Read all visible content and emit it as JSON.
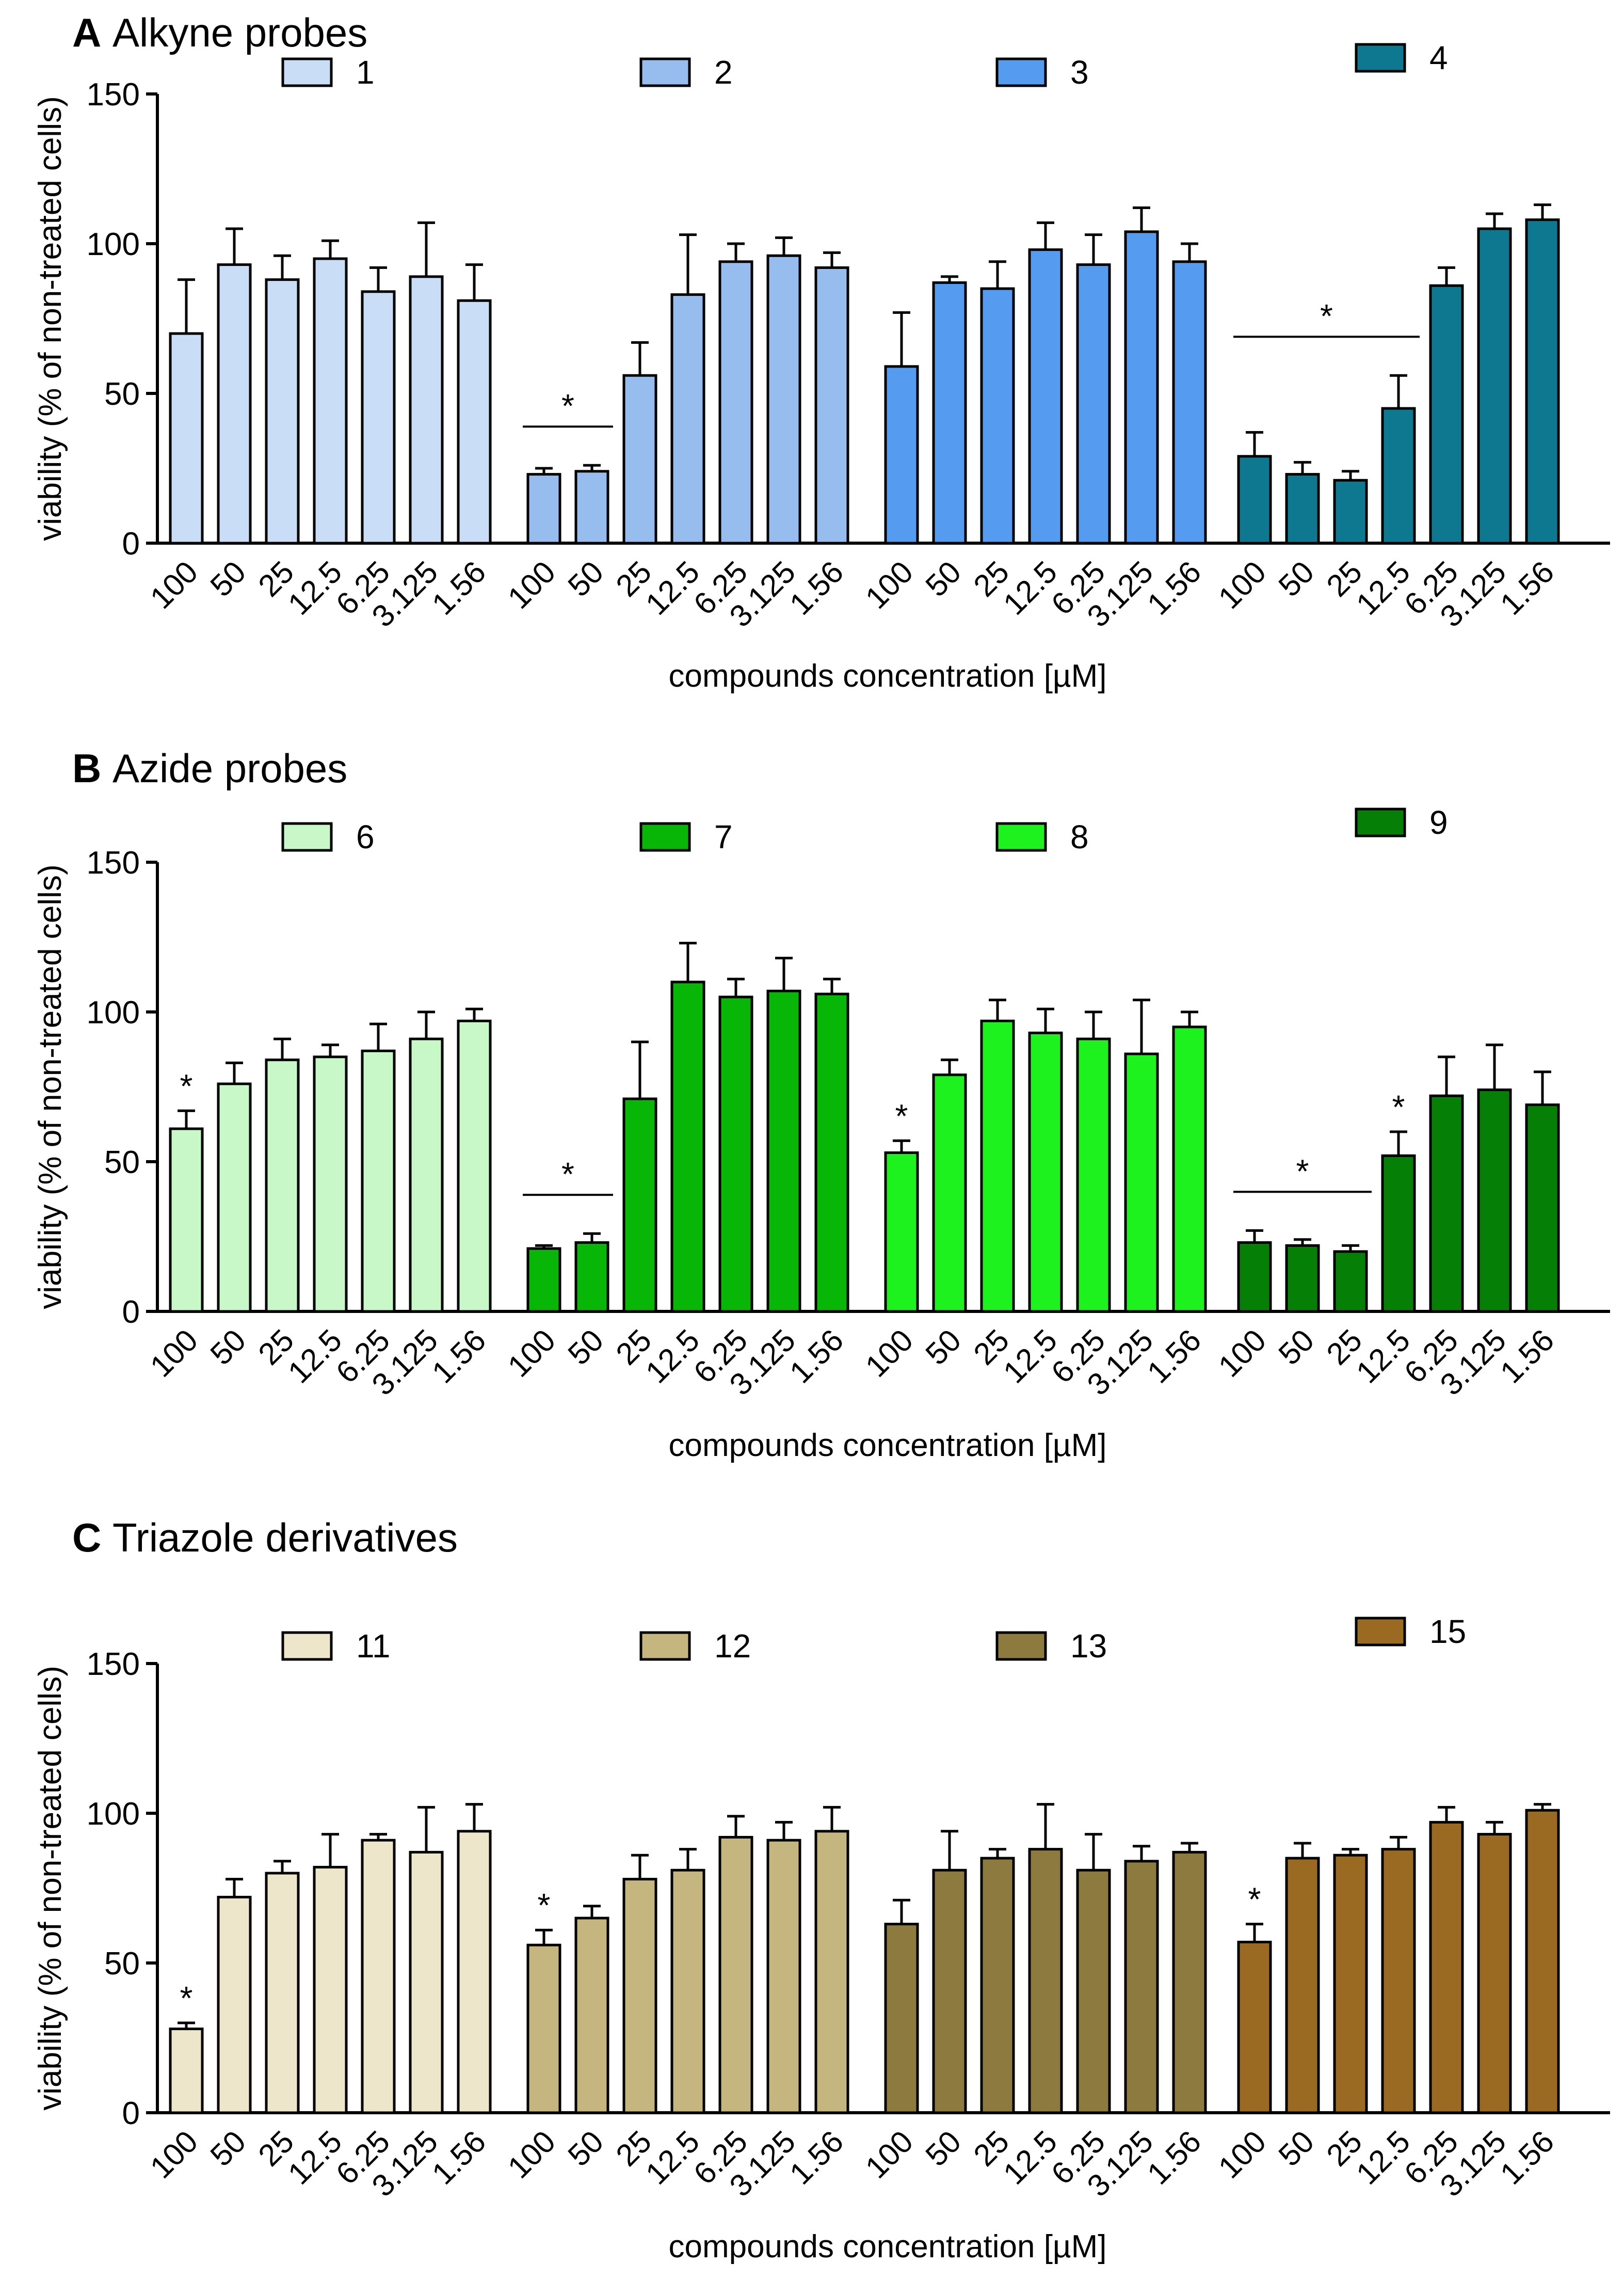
{
  "chart_data": [
    {
      "type": "bar",
      "panel_letter": "A",
      "title": "Alkyne probes",
      "xlabel": "compounds concentration [µM]",
      "ylabel": "viability (% of non-treated cells)",
      "ylim": [
        0,
        150
      ],
      "yticks": [
        "0",
        "50",
        "100",
        "150"
      ],
      "categories": [
        "100",
        "50",
        "25",
        "12.5",
        "6.25",
        "3.125",
        "1.56"
      ],
      "series": [
        {
          "name": "1",
          "color": "#C9DDF6",
          "values": [
            70,
            93,
            88,
            95,
            84,
            89,
            81
          ],
          "errors": [
            18,
            12,
            8,
            6,
            8,
            18,
            12
          ],
          "sig": []
        },
        {
          "name": "2",
          "color": "#97BDEE",
          "values": [
            23,
            24,
            56,
            83,
            94,
            96,
            92
          ],
          "errors": [
            2,
            2,
            11,
            20,
            6,
            6,
            5
          ],
          "sig": [],
          "sig_bracket": {
            "from": 0,
            "to": 1,
            "label": "*"
          }
        },
        {
          "name": "3",
          "color": "#559CF0",
          "values": [
            59,
            87,
            85,
            98,
            93,
            104,
            94
          ],
          "errors": [
            18,
            2,
            9,
            9,
            10,
            8,
            6
          ],
          "sig": []
        },
        {
          "name": "4",
          "color": "#0E7890",
          "values": [
            29,
            23,
            21,
            45,
            86,
            105,
            108
          ],
          "errors": [
            8,
            4,
            3,
            11,
            6,
            5,
            5
          ],
          "sig": [],
          "sig_bracket": {
            "from": 0,
            "to": 3,
            "label": "*"
          }
        }
      ]
    },
    {
      "type": "bar",
      "panel_letter": "B",
      "title": "Azide probes",
      "xlabel": "compounds concentration [µM]",
      "ylabel": "viability (% of non-treated cells)",
      "ylim": [
        0,
        150
      ],
      "yticks": [
        "0",
        "50",
        "100",
        "150"
      ],
      "categories": [
        "100",
        "50",
        "25",
        "12.5",
        "6.25",
        "3.125",
        "1.56"
      ],
      "series": [
        {
          "name": "6",
          "color": "#C8F8C8",
          "values": [
            61,
            76,
            84,
            85,
            87,
            91,
            97
          ],
          "errors": [
            6,
            7,
            7,
            4,
            9,
            9,
            4
          ],
          "sig": [
            0
          ]
        },
        {
          "name": "7",
          "color": "#08B608",
          "values": [
            21,
            23,
            71,
            110,
            105,
            107,
            106
          ],
          "errors": [
            1,
            3,
            19,
            13,
            6,
            11,
            5
          ],
          "sig": [],
          "sig_bracket": {
            "from": 0,
            "to": 1,
            "label": "*"
          }
        },
        {
          "name": "8",
          "color": "#1EF21E",
          "values": [
            53,
            79,
            97,
            93,
            91,
            86,
            95
          ],
          "errors": [
            4,
            5,
            7,
            8,
            9,
            18,
            5
          ],
          "sig": [
            0
          ]
        },
        {
          "name": "9",
          "color": "#067F06",
          "values": [
            23,
            22,
            20,
            52,
            72,
            74,
            69
          ],
          "errors": [
            4,
            2,
            2,
            8,
            13,
            15,
            11
          ],
          "sig": [
            3
          ],
          "sig_bracket": {
            "from": 0,
            "to": 2,
            "label": "*"
          }
        }
      ]
    },
    {
      "type": "bar",
      "panel_letter": "C",
      "title": "Triazole derivatives",
      "xlabel": "compounds concentration [µM]",
      "ylabel": "viability (% of non-treated cells)",
      "ylim": [
        0,
        150
      ],
      "yticks": [
        "0",
        "50",
        "100",
        "150"
      ],
      "categories": [
        "100",
        "50",
        "25",
        "12.5",
        "6.25",
        "3.125",
        "1.56"
      ],
      "series": [
        {
          "name": "11",
          "color": "#EDE6CA",
          "values": [
            28,
            72,
            80,
            82,
            91,
            87,
            94
          ],
          "errors": [
            2,
            6,
            4,
            11,
            2,
            15,
            9
          ],
          "sig": [
            0
          ]
        },
        {
          "name": "12",
          "color": "#C4B67E",
          "values": [
            56,
            65,
            78,
            81,
            92,
            91,
            94
          ],
          "errors": [
            5,
            4,
            8,
            7,
            7,
            6,
            8
          ],
          "sig": [
            0
          ]
        },
        {
          "name": "13",
          "color": "#8D7A3E",
          "values": [
            63,
            81,
            85,
            88,
            81,
            84,
            87
          ],
          "errors": [
            8,
            13,
            3,
            15,
            12,
            5,
            3
          ],
          "sig": []
        },
        {
          "name": "15",
          "color": "#9A6A22",
          "values": [
            57,
            85,
            86,
            88,
            97,
            93,
            101
          ],
          "errors": [
            6,
            5,
            2,
            4,
            5,
            4,
            2
          ],
          "sig": [
            0
          ]
        }
      ]
    }
  ]
}
